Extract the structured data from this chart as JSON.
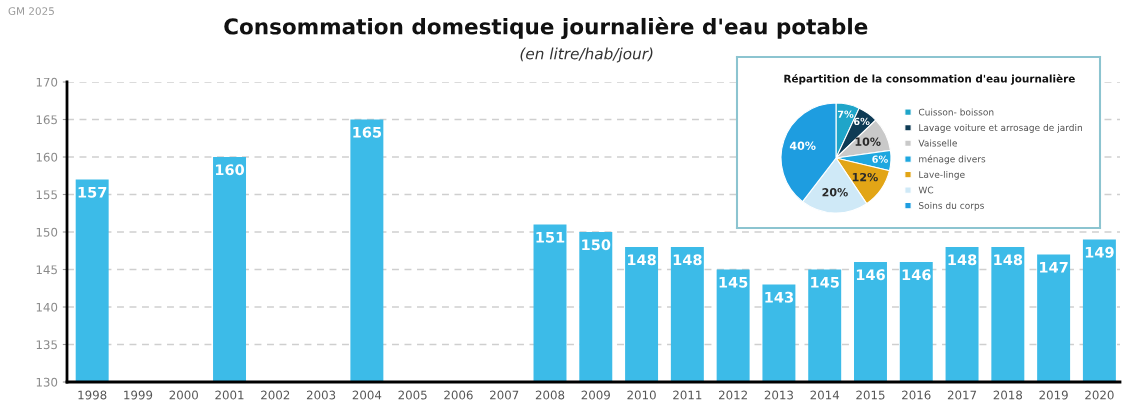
{
  "chart_data": [
    {
      "type": "bar",
      "title": "Consommation domestique journalière d'eau potable",
      "subtitle": "(en litre/hab/jour)",
      "annotations": [
        "GM 2025"
      ],
      "categories": [
        "1998",
        "1999",
        "2000",
        "2001",
        "2002",
        "2003",
        "2004",
        "2005",
        "2006",
        "2007",
        "2008",
        "2009",
        "2010",
        "2011",
        "2012",
        "2013",
        "2014",
        "2015",
        "2016",
        "2017",
        "2018",
        "2019",
        "2020"
      ],
      "values": [
        157,
        null,
        null,
        160,
        null,
        null,
        165,
        null,
        null,
        null,
        151,
        150,
        148,
        148,
        145,
        143,
        145,
        146,
        146,
        148,
        148,
        147,
        149
      ],
      "color": "#3cbbe8",
      "ylim": [
        130,
        170
      ],
      "yticks": [
        130,
        135,
        140,
        145,
        150,
        155,
        160,
        165,
        170
      ],
      "grid": "y",
      "data_labels": true
    },
    {
      "type": "pie",
      "title": "Répartition de la consommation d'eau journalière",
      "categories": [
        "Cuisson- boisson",
        "Lavage voiture et arrosage de jardin",
        "Vaisselle",
        "ménage divers",
        "Lave-linge",
        "WC",
        "Soins du corps"
      ],
      "values": [
        7,
        6,
        10,
        6,
        12,
        20,
        40
      ],
      "value_labels": [
        "7%",
        "6%",
        "10%",
        "6%",
        "12%",
        "20%",
        "40%"
      ],
      "colors": [
        "#1fa5c9",
        "#0e3b55",
        "#c9c9c9",
        "#1ea7df",
        "#e2a516",
        "#cfe9f7",
        "#1e9de0"
      ],
      "legend": "right"
    }
  ]
}
